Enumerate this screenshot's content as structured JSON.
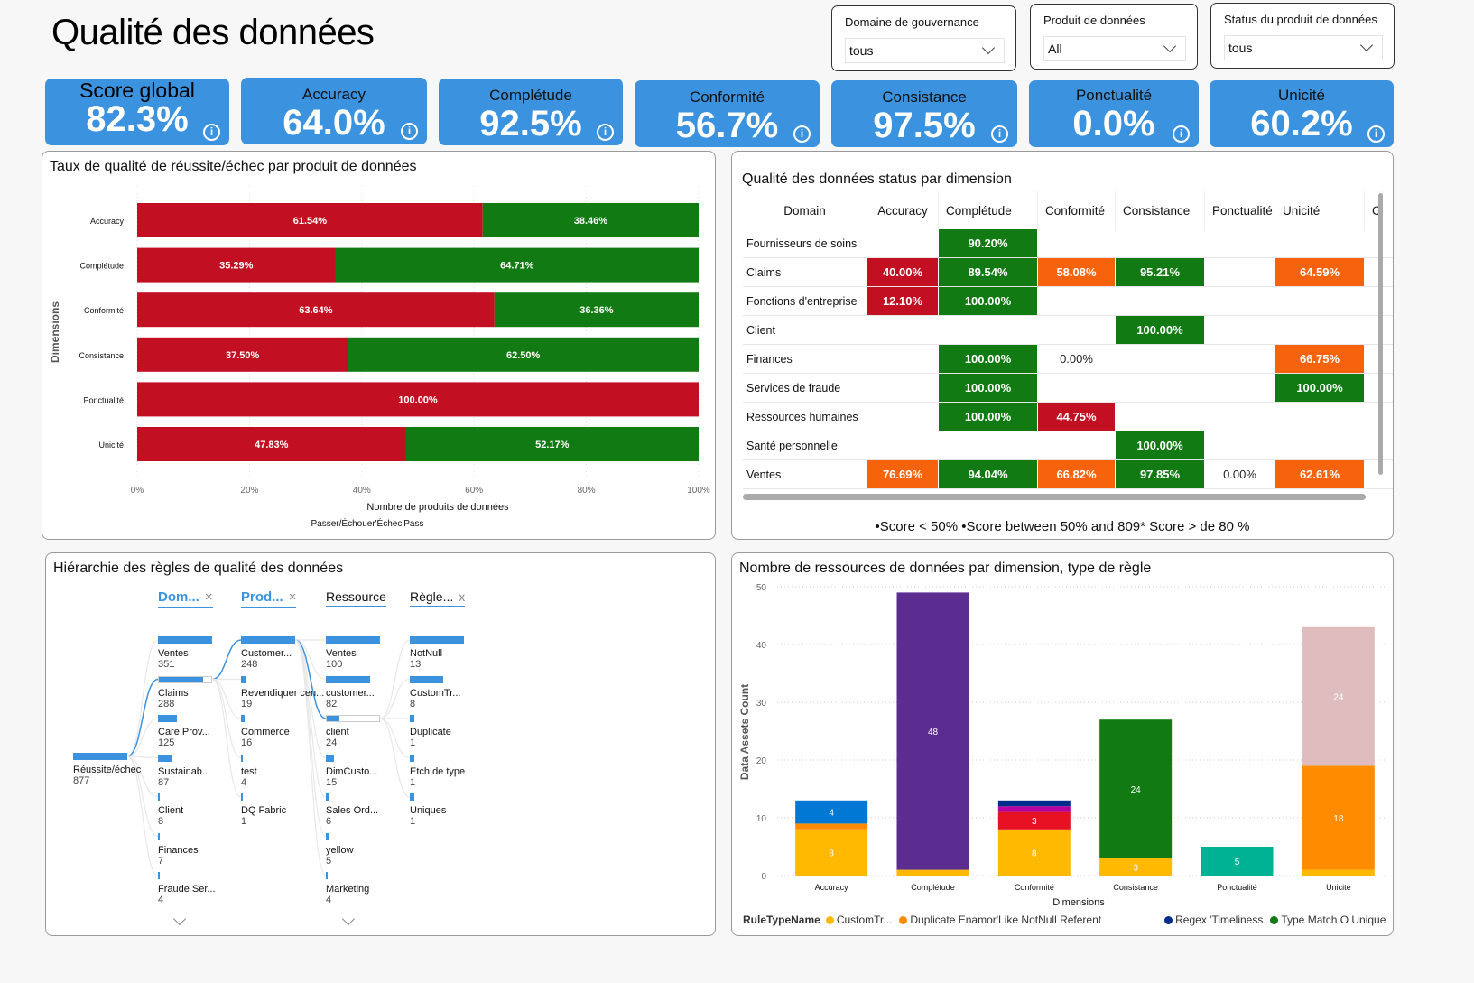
{
  "header": {
    "title": "Qualité des données"
  },
  "filters": [
    {
      "label": "Domaine de gouvernance",
      "value": "tous"
    },
    {
      "label": "Produit de données",
      "value": "All"
    },
    {
      "label": "Status du produit de données",
      "value": "tous"
    }
  ],
  "kpis": [
    {
      "label": "Score global",
      "value": "82.3%"
    },
    {
      "label": "Accuracy",
      "value": "64.0%"
    },
    {
      "label": "Complétude",
      "value": "92.5%"
    },
    {
      "label": "Conformité",
      "value": "56.7%"
    },
    {
      "label": "Consistance",
      "value": "97.5%"
    },
    {
      "label": "Ponctualité",
      "value": "0.0%"
    },
    {
      "label": "Unicité",
      "value": "60.2%"
    }
  ],
  "info_glyph": "i",
  "colors": {
    "accent": "#3b93df",
    "fail": "#c30f22",
    "pass": "#117a12",
    "mid": "#f7630c"
  },
  "passfail": {
    "title": "Taux de qualité de réussite/échec par produit de données",
    "legend_text": "Passer/Échouer'Échec'Pass"
  },
  "matrix": {
    "title": "Qualité des données status par dimension",
    "columns": [
      "Domain",
      "Accuracy",
      "Complétude",
      "Conformité",
      "Consistance",
      "Ponctualité",
      "Unicité",
      "C"
    ],
    "rows": [
      {
        "domain": "Fournisseurs de soins",
        "cells": [
          "",
          "90.20%",
          "",
          "",
          "",
          ""
        ]
      },
      {
        "domain": "Claims",
        "cells": [
          "40.00%",
          "89.54%",
          "58.08%",
          "95.21%",
          "",
          "64.59%"
        ]
      },
      {
        "domain": "Fonctions d'entreprise",
        "cells": [
          "12.10%",
          "100.00%",
          "",
          "",
          "",
          ""
        ]
      },
      {
        "domain": "Client",
        "cells": [
          "",
          "",
          "",
          "100.00%",
          "",
          ""
        ]
      },
      {
        "domain": "Finances",
        "cells": [
          "",
          "100.00%",
          "0.00%",
          "",
          "",
          "66.75%"
        ]
      },
      {
        "domain": "Services de fraude",
        "cells": [
          "",
          "100.00%",
          "",
          "",
          "",
          "100.00%"
        ]
      },
      {
        "domain": "Ressources humaines",
        "cells": [
          "",
          "100.00%",
          "44.75%",
          "",
          "",
          ""
        ]
      },
      {
        "domain": "Santé personnelle",
        "cells": [
          "",
          "",
          "",
          "100.00%",
          "",
          ""
        ]
      },
      {
        "domain": "Ventes",
        "cells": [
          "76.69%",
          "94.04%",
          "66.82%",
          "97.85%",
          "0.00%",
          "62.61%"
        ]
      }
    ],
    "legend": "•Score < 50% •Score between 50% and 809* Score > de 80 %"
  },
  "tree": {
    "title": "Hiérarchie des règles de qualité des données",
    "headers": [
      {
        "label": "Dom...",
        "closable": true,
        "active": true
      },
      {
        "label": "Prod...",
        "closable": true,
        "active": true
      },
      {
        "label": "Ressource",
        "closable": false,
        "active": false
      },
      {
        "label": "Règle...",
        "closable": true,
        "active": false
      }
    ],
    "close_glyph": "×",
    "root": {
      "label": "Réussite/échec",
      "value": "877"
    },
    "levels": [
      [
        {
          "label": "Ventes",
          "value": "351"
        },
        {
          "label": "Claims",
          "value": "288"
        },
        {
          "label": "Care Prov...",
          "value": "125"
        },
        {
          "label": "Sustainab...",
          "value": "87"
        },
        {
          "label": "Client",
          "value": "8"
        },
        {
          "label": "Finances",
          "value": "7"
        },
        {
          "label": "Fraude Ser...",
          "value": "4"
        }
      ],
      [
        {
          "label": "Customer...",
          "value": "248"
        },
        {
          "label": "Revendiquer cen...",
          "value": "19"
        },
        {
          "label": "Commerce",
          "value": "16"
        },
        {
          "label": "test",
          "value": "4"
        },
        {
          "label": "DQ Fabric",
          "value": "1"
        }
      ],
      [
        {
          "label": "Ventes",
          "value": "100"
        },
        {
          "label": "customer...",
          "value": "82"
        },
        {
          "label": "client",
          "value": "24"
        },
        {
          "label": "DimCusto...",
          "value": "15"
        },
        {
          "label": "Sales Ord...",
          "value": "6"
        },
        {
          "label": "yellow",
          "value": "5"
        },
        {
          "label": "Marketing",
          "value": "4"
        }
      ],
      [
        {
          "label": "NotNull",
          "value": "13"
        },
        {
          "label": "CustomTr...",
          "value": "8"
        },
        {
          "label": "Duplicate",
          "value": "1"
        },
        {
          "label": "Etch de type",
          "value": "1"
        },
        {
          "label": "Uniques",
          "value": "1"
        }
      ]
    ]
  },
  "stacked": {
    "title": "Nombre de ressources de données par dimension, type de règle",
    "legend_title": "RuleTypeName",
    "legend_items": [
      {
        "label": "CustomTr...",
        "color": "#ffb900"
      },
      {
        "label": "Duplicate Enamor'Like NotNull Referent",
        "color": "#ff8c00"
      },
      {
        "label": "Regex 'Timeliness",
        "color": "#002c8c"
      },
      {
        "label": "Type Match O Unique",
        "color": "#117a12"
      }
    ]
  },
  "chart_data": [
    {
      "type": "bar",
      "orientation": "horizontal",
      "stacked": "100%",
      "title": "Taux de qualité de réussite/échec par produit de données",
      "xlabel": "Nombre de produits de données",
      "ylabel": "Dimensions",
      "categories": [
        "Accuracy",
        "Complétude",
        "Conformité",
        "Consistance",
        "Ponctualité",
        "Unicité"
      ],
      "series": [
        {
          "name": "Échec",
          "color": "#c30f22",
          "values": [
            61.54,
            35.29,
            63.64,
            37.5,
            100.0,
            47.83
          ]
        },
        {
          "name": "Pass",
          "color": "#117a12",
          "values": [
            38.46,
            64.71,
            36.36,
            62.5,
            0,
            52.17
          ]
        }
      ],
      "xticks": [
        "0%",
        "20%",
        "40%",
        "60%",
        "80%",
        "100%"
      ],
      "xlim": [
        0,
        100
      ],
      "legend": "bottom"
    },
    {
      "type": "bar",
      "stacked": true,
      "title": "Nombre de ressources de données par dimension, type de règle",
      "xlabel": "Dimensions",
      "ylabel": "Data Assets Count",
      "categories": [
        "Accuracy",
        "Complétude",
        "Conformité",
        "Consistance",
        "Ponctualité",
        "Unicité"
      ],
      "ylim": [
        0,
        50
      ],
      "yticks": [
        0,
        10,
        20,
        30,
        40,
        50
      ],
      "series": [
        {
          "name": "CustomTr...",
          "color": "#ffb900",
          "values": [
            8,
            1,
            8,
            3,
            0,
            1
          ]
        },
        {
          "name": "Duplicate",
          "color": "#ff8c00",
          "values": [
            1,
            0,
            0,
            0,
            0,
            18
          ]
        },
        {
          "name": "Like",
          "color": "#0078d4",
          "values": [
            4,
            0,
            0,
            0,
            0,
            0
          ]
        },
        {
          "name": "NotNull",
          "color": "#5c2d91",
          "values": [
            0,
            48,
            0,
            0,
            0,
            0
          ]
        },
        {
          "name": "Referent",
          "color": "#e81123",
          "values": [
            0,
            0,
            3,
            0,
            0,
            0
          ]
        },
        {
          "name": "Regex",
          "color": "#b4009e",
          "values": [
            0,
            0,
            1,
            0,
            0,
            0
          ]
        },
        {
          "name": "Timeliness",
          "color": "#002c8c",
          "values": [
            0,
            0,
            1,
            0,
            0,
            0
          ]
        },
        {
          "name": "Type Match",
          "color": "#117a12",
          "values": [
            0,
            0,
            0,
            24,
            0,
            0
          ]
        },
        {
          "name": "O",
          "color": "#00b294",
          "values": [
            0,
            0,
            0,
            0,
            5,
            0
          ]
        },
        {
          "name": "Unique",
          "color": "#dfbdbf",
          "values": [
            0,
            0,
            0,
            0,
            0,
            24
          ]
        }
      ],
      "data_labels_min": 3,
      "legend": "bottom"
    }
  ]
}
